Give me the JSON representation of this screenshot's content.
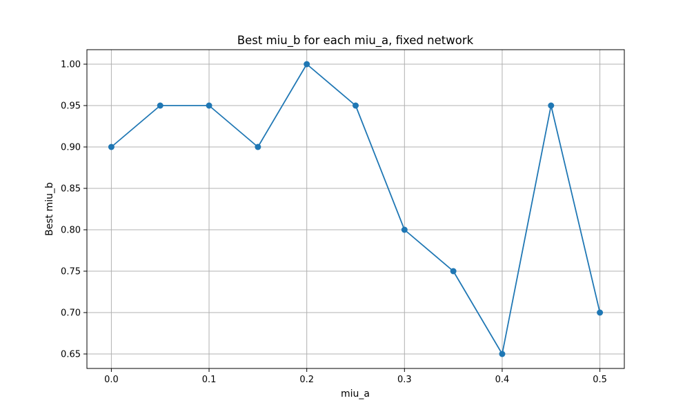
{
  "chart_data": {
    "type": "line",
    "title": "Best miu_b for each miu_a, fixed network",
    "xlabel": "miu_a",
    "ylabel": "Best miu_b",
    "x": [
      0.0,
      0.05,
      0.1,
      0.15,
      0.2,
      0.25,
      0.3,
      0.35,
      0.4,
      0.45,
      0.5
    ],
    "series": [
      {
        "values": [
          0.9,
          0.95,
          0.95,
          0.9,
          1.0,
          0.95,
          0.8,
          0.75,
          0.65,
          0.95,
          0.7
        ],
        "color": "#1f77b4",
        "marker": "circle"
      }
    ],
    "xticks": [
      0.0,
      0.1,
      0.2,
      0.3,
      0.4,
      0.5
    ],
    "xtick_labels": [
      "0.0",
      "0.1",
      "0.2",
      "0.3",
      "0.4",
      "0.5"
    ],
    "yticks": [
      0.65,
      0.7,
      0.75,
      0.8,
      0.85,
      0.9,
      0.95,
      1.0
    ],
    "ytick_labels": [
      "0.65",
      "0.70",
      "0.75",
      "0.80",
      "0.85",
      "0.90",
      "0.95",
      "1.00"
    ],
    "xlim": [
      -0.025,
      0.525
    ],
    "ylim": [
      0.6325,
      1.0175
    ],
    "grid": true,
    "colors": {
      "line": "#1f77b4",
      "grid": "#b0b0b0",
      "axes": "#000000"
    }
  }
}
